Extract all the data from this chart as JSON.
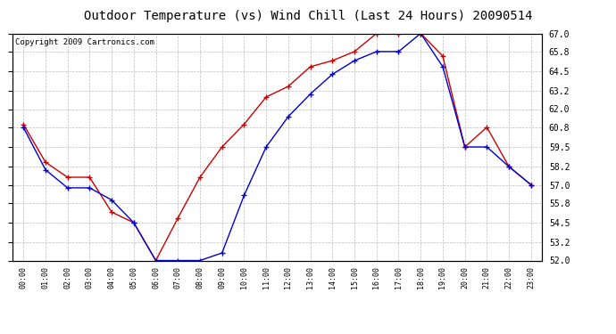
{
  "title": "Outdoor Temperature (vs) Wind Chill (Last 24 Hours) 20090514",
  "copyright": "Copyright 2009 Cartronics.com",
  "hours": [
    "00:00",
    "01:00",
    "02:00",
    "03:00",
    "04:00",
    "05:00",
    "06:00",
    "07:00",
    "08:00",
    "09:00",
    "10:00",
    "11:00",
    "12:00",
    "13:00",
    "14:00",
    "15:00",
    "16:00",
    "17:00",
    "18:00",
    "19:00",
    "20:00",
    "21:00",
    "22:00",
    "23:00"
  ],
  "outdoor_temp": [
    61.0,
    58.5,
    57.5,
    57.5,
    55.2,
    54.5,
    52.0,
    54.8,
    57.5,
    59.5,
    61.0,
    62.8,
    63.5,
    64.8,
    65.2,
    65.8,
    67.0,
    67.0,
    67.0,
    65.5,
    59.5,
    60.8,
    58.2,
    57.0
  ],
  "wind_chill": [
    60.8,
    58.0,
    56.8,
    56.8,
    56.0,
    54.5,
    52.0,
    52.0,
    52.0,
    52.5,
    56.3,
    59.5,
    61.5,
    63.0,
    64.3,
    65.2,
    65.8,
    65.8,
    67.0,
    64.8,
    59.5,
    59.5,
    58.2,
    57.0
  ],
  "temp_color": "#cc0000",
  "wind_chill_color": "#0000cc",
  "ylim_min": 52.0,
  "ylim_max": 67.0,
  "yticks": [
    52.0,
    53.2,
    54.5,
    55.8,
    57.0,
    58.2,
    59.5,
    60.8,
    62.0,
    63.2,
    64.5,
    65.8,
    67.0
  ],
  "background_color": "#ffffff",
  "plot_bg_color": "#ffffff",
  "grid_color": "#bbbbbb",
  "title_fontsize": 10,
  "copyright_fontsize": 6.5
}
